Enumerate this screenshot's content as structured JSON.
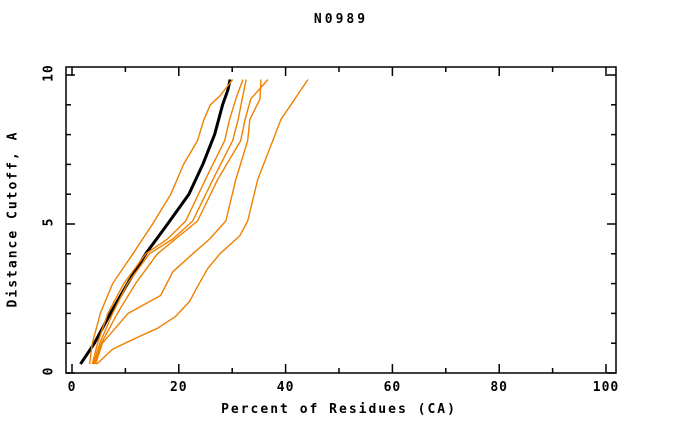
{
  "colors": {
    "background": "#ffffff",
    "frame": "#000000",
    "text": "#000000",
    "model_black": "#000000",
    "model_orange": "#ef8000"
  },
  "chart_data": {
    "type": "line",
    "title": "N0989",
    "xlabel": "Percent of Residues (CA)",
    "ylabel": "Distance Cutoff, A",
    "xlim": [
      0,
      100
    ],
    "ylim": [
      0,
      10
    ],
    "grid": false,
    "legend": "none",
    "x_major_ticks": [
      0,
      20,
      40,
      60,
      80,
      100
    ],
    "x_minor_ticks": [
      10,
      30,
      50,
      70,
      90
    ],
    "y_major_ticks": [
      0,
      5,
      10
    ],
    "y_minor_ticks": [
      1,
      2,
      3,
      4,
      6,
      7,
      8,
      9
    ],
    "x_tick_labels": [
      "0",
      "20",
      "40",
      "60",
      "80",
      "100"
    ],
    "y_tick_labels": [
      "0",
      "5",
      "10"
    ],
    "series": [
      {
        "name": "black-bold-model",
        "color": "#000000",
        "width": 3,
        "points": [
          [
            1.6,
            0.3
          ],
          [
            4.2,
            1
          ],
          [
            7.2,
            2
          ],
          [
            10.4,
            3
          ],
          [
            13.8,
            4
          ],
          [
            17.9,
            5
          ],
          [
            21.9,
            6
          ],
          [
            24.5,
            7
          ],
          [
            26.7,
            8
          ],
          [
            28.2,
            9
          ],
          [
            29.2,
            9.5
          ],
          [
            29.6,
            9.85
          ]
        ]
      },
      {
        "name": "orange-model-1",
        "color": "#ef8000",
        "width": 1.4,
        "points": [
          [
            3.3,
            0.3
          ],
          [
            3.8,
            1
          ],
          [
            5.3,
            2
          ],
          [
            7.6,
            3
          ],
          [
            11.4,
            4
          ],
          [
            15.1,
            5
          ],
          [
            18.5,
            6
          ],
          [
            20.9,
            7
          ],
          [
            23.5,
            7.8
          ],
          [
            24.7,
            8.5
          ],
          [
            25.9,
            9
          ],
          [
            27.7,
            9.3
          ],
          [
            30.1,
            9.85
          ]
        ]
      },
      {
        "name": "orange-model-2",
        "color": "#ef8000",
        "width": 1.4,
        "points": [
          [
            3.8,
            0.3
          ],
          [
            4.8,
            1
          ],
          [
            6.7,
            2
          ],
          [
            9.7,
            3
          ],
          [
            13.8,
            4
          ],
          [
            17.9,
            4.5
          ],
          [
            21.3,
            5.1
          ],
          [
            25.0,
            6.5
          ],
          [
            28.6,
            7.8
          ],
          [
            29.5,
            8.5
          ],
          [
            30.7,
            9.2
          ],
          [
            32.0,
            9.85
          ]
        ]
      },
      {
        "name": "orange-model-3",
        "color": "#ef8000",
        "width": 1.4,
        "points": [
          [
            4.0,
            0.3
          ],
          [
            5.2,
            1
          ],
          [
            7.6,
            2
          ],
          [
            10.4,
            3
          ],
          [
            14.5,
            4
          ],
          [
            18.9,
            4.5
          ],
          [
            22.6,
            5.1
          ],
          [
            26.4,
            6.5
          ],
          [
            30.1,
            7.8
          ],
          [
            31.1,
            8.5
          ],
          [
            32.6,
            9.85
          ]
        ]
      },
      {
        "name": "orange-model-4",
        "color": "#ef8000",
        "width": 1.4,
        "points": [
          [
            4.2,
            0.3
          ],
          [
            5.5,
            1
          ],
          [
            8.5,
            2
          ],
          [
            11.9,
            3
          ],
          [
            16.0,
            4
          ],
          [
            19.4,
            4.5
          ],
          [
            23.5,
            5.1
          ],
          [
            27.3,
            6.5
          ],
          [
            31.6,
            7.8
          ],
          [
            32.4,
            8.5
          ],
          [
            33.5,
            9.2
          ],
          [
            36.7,
            9.85
          ]
        ]
      },
      {
        "name": "orange-model-5",
        "color": "#ef8000",
        "width": 1.4,
        "points": [
          [
            4.4,
            0.3
          ],
          [
            5.7,
            1
          ],
          [
            7.6,
            1.4
          ],
          [
            10.5,
            2
          ],
          [
            16.6,
            2.6
          ],
          [
            18.9,
            3.4
          ],
          [
            22.6,
            4
          ],
          [
            25.8,
            4.5
          ],
          [
            28.8,
            5.1
          ],
          [
            30.7,
            6.5
          ],
          [
            32.9,
            7.8
          ],
          [
            33.3,
            8.5
          ],
          [
            35.2,
            9.2
          ],
          [
            35.4,
            9.85
          ]
        ]
      },
      {
        "name": "orange-model-6",
        "color": "#ef8000",
        "width": 1.4,
        "points": [
          [
            4.6,
            0.3
          ],
          [
            7.6,
            0.8
          ],
          [
            12.3,
            1.2
          ],
          [
            16.0,
            1.5
          ],
          [
            19.4,
            1.9
          ],
          [
            22.0,
            2.4
          ],
          [
            23.5,
            2.9
          ],
          [
            25.4,
            3.5
          ],
          [
            27.7,
            4.0
          ],
          [
            31.4,
            4.6
          ],
          [
            32.9,
            5.1
          ],
          [
            34.8,
            6.5
          ],
          [
            37.6,
            7.8
          ],
          [
            39.1,
            8.5
          ],
          [
            44.2,
            9.85
          ]
        ]
      }
    ]
  }
}
